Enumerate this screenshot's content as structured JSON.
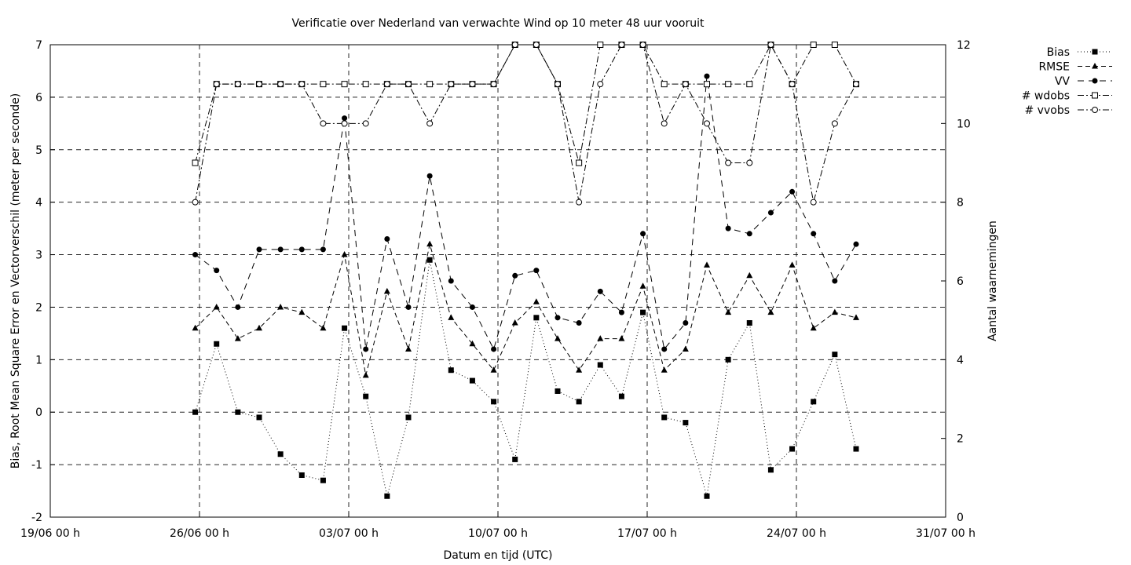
{
  "chart_data": {
    "type": "line",
    "title": "Verificatie over Nederland van verwachte Wind op 10 meter 48 uur vooruit",
    "xlabel": "Datum en tijd (UTC)",
    "ylabel": "Bias, Root Mean Square Error en Vectorverschil (meter per seconde)",
    "y2label": "Aantal waarnemingen",
    "xlim_days": [
      0,
      42
    ],
    "ylim": [
      -2,
      7
    ],
    "y2lim": [
      0,
      12
    ],
    "grid": true,
    "legend_position": "top-right, outside plot",
    "x_ticks": [
      {
        "day": 0,
        "label": "19/06 00 h"
      },
      {
        "day": 7,
        "label": "26/06 00 h"
      },
      {
        "day": 14,
        "label": "03/07 00 h"
      },
      {
        "day": 21,
        "label": "10/07 00 h"
      },
      {
        "day": 28,
        "label": "17/07 00 h"
      },
      {
        "day": 35,
        "label": "24/07 00 h"
      },
      {
        "day": 42,
        "label": "31/07 00 h"
      }
    ],
    "y_ticks": [
      "-2",
      "-1",
      "0",
      "1",
      "2",
      "3",
      "4",
      "5",
      "6",
      "7"
    ],
    "y2_ticks": [
      "0",
      "2",
      "4",
      "6",
      "8",
      "10",
      "12"
    ],
    "x_days": [
      6.8,
      7.8,
      8.8,
      9.8,
      10.8,
      11.8,
      12.8,
      13.8,
      14.8,
      15.8,
      16.8,
      17.8,
      18.8,
      19.8,
      20.8,
      21.8,
      22.8,
      23.8,
      24.8,
      25.8,
      26.8,
      27.8,
      28.8,
      29.8,
      30.8,
      31.8,
      32.8,
      33.8,
      34.8,
      35.8,
      36.8,
      37.8
    ],
    "series": [
      {
        "name": "Bias",
        "axis": "left",
        "marker": "filled-square",
        "dash": "1,3",
        "values": [
          0,
          1.3,
          0,
          -0.1,
          -0.8,
          -1.2,
          -1.3,
          1.6,
          0.3,
          -1.6,
          -0.1,
          2.9,
          0.8,
          0.6,
          0.2,
          -0.9,
          1.8,
          0.4,
          0.2,
          0.9,
          0.3,
          1.9,
          -0.1,
          -0.2,
          -1.6,
          1.0,
          1.7,
          -1.1,
          -0.7,
          0.2,
          1.1,
          -0.7
        ]
      },
      {
        "name": "RMSE",
        "axis": "left",
        "marker": "filled-triangle",
        "dash": "6,4",
        "values": [
          1.6,
          2.0,
          1.4,
          1.6,
          2.0,
          1.9,
          1.6,
          3.0,
          0.7,
          2.3,
          1.2,
          3.2,
          1.8,
          1.3,
          0.8,
          1.7,
          2.1,
          1.4,
          0.8,
          1.4,
          1.4,
          2.4,
          0.8,
          1.2,
          2.8,
          1.9,
          2.6,
          1.9,
          2.8,
          1.6,
          1.9,
          1.8
        ]
      },
      {
        "name": "VV",
        "axis": "left",
        "marker": "filled-circle",
        "dash": "8,6",
        "values": [
          3.0,
          2.7,
          2.0,
          3.1,
          3.1,
          3.1,
          3.1,
          5.6,
          1.2,
          3.3,
          2.0,
          4.5,
          2.5,
          2.0,
          1.2,
          2.6,
          2.7,
          1.8,
          1.7,
          2.3,
          1.9,
          3.4,
          1.2,
          1.7,
          6.4,
          3.5,
          3.4,
          3.8,
          4.2,
          3.4,
          2.5,
          3.2
        ]
      },
      {
        "name": "# wdobs",
        "axis": "right",
        "marker": "open-square",
        "dash": "8,3,2,3",
        "values": [
          9,
          11,
          11,
          11,
          11,
          11,
          11,
          11,
          11,
          11,
          11,
          11,
          11,
          11,
          11,
          12,
          12,
          11,
          9,
          12,
          12,
          12,
          11,
          11,
          11,
          11,
          11,
          12,
          11,
          12,
          12,
          11
        ]
      },
      {
        "name": "# vvobs",
        "axis": "right",
        "marker": "open-circle",
        "dash": "8,3,2,3",
        "values": [
          8,
          11,
          11,
          11,
          11,
          11,
          10,
          10,
          10,
          11,
          11,
          10,
          11,
          11,
          11,
          12,
          12,
          11,
          8,
          11,
          12,
          12,
          10,
          11,
          10,
          9,
          9,
          12,
          11,
          8,
          10,
          11
        ]
      }
    ]
  }
}
